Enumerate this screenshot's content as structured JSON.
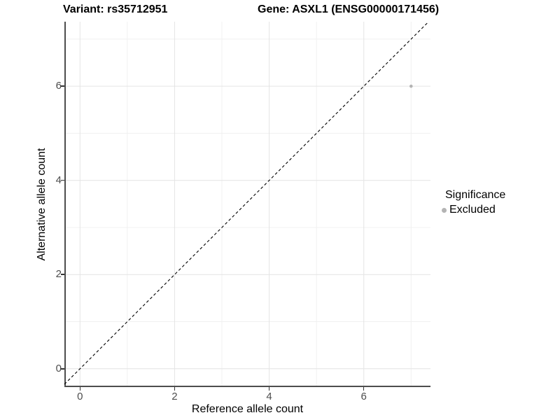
{
  "figure": {
    "title_left": "Variant: rs35712951",
    "title_right": "Gene: ASXL1 (ENSG00000171456)"
  },
  "chart_data": {
    "type": "scatter",
    "title": "Variant: rs35712951 / Gene: ASXL1 (ENSG00000171456)",
    "xlabel": "Reference allele count",
    "ylabel": "Alternative allele count",
    "xlim": [
      -0.33,
      7.41
    ],
    "ylim": [
      -0.39,
      7.37
    ],
    "xticks": [
      0,
      2,
      4,
      6
    ],
    "yticks": [
      0,
      2,
      4,
      6
    ],
    "minor_xticks": [
      1,
      3,
      5,
      7
    ],
    "minor_yticks": [
      1,
      3,
      5,
      7
    ],
    "grid": "major+minor",
    "series": [
      {
        "name": "Excluded",
        "color": "#b4b4b4",
        "points": [
          {
            "x": 7,
            "y": 6
          }
        ]
      }
    ],
    "reference_line": {
      "type": "identity y=x",
      "style": "dashed",
      "color": "#000000"
    },
    "legend": {
      "title": "Significance",
      "position": "right",
      "entries": [
        {
          "label": "Excluded",
          "color": "#b4b4b4"
        }
      ]
    },
    "colors": {
      "axis_line": "#4d4d4d",
      "major_grid": "#e4e4e4",
      "minor_grid": "#f0f0f0",
      "tick": "#333333",
      "tick_label": "#4d4d4d"
    }
  }
}
